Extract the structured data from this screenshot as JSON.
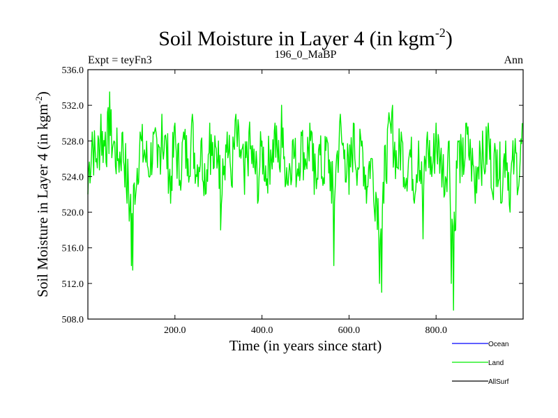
{
  "chart_data": {
    "type": "line",
    "title_main": "Soil Moisture in Layer 4 (in kgm",
    "title_sup": "-2",
    "title_close": ")",
    "subtitle_left": "Expt = teyFn3",
    "subtitle_center": "196_0_MaBP",
    "subtitle_right": "Ann",
    "xlabel": "Time (in years since start)",
    "ylabel_main": "Soil Moisture in Layer 4 (in kgm",
    "ylabel_sup": "-2",
    "ylabel_close": ")",
    "xlim": [
      0,
      1000
    ],
    "ylim": [
      508,
      536
    ],
    "xticks": [
      200,
      400,
      600,
      800
    ],
    "xtick_labels": [
      "200.0",
      "400.0",
      "600.0",
      "800.0"
    ],
    "yticks": [
      508,
      512,
      516,
      520,
      524,
      528,
      532,
      536
    ],
    "ytick_labels": [
      "508.0",
      "512.0",
      "516.0",
      "520.0",
      "524.0",
      "528.0",
      "532.0",
      "536.0"
    ],
    "legend_position": "bottom-right",
    "legend": [
      {
        "name": "Ocean",
        "color": "#0000ff"
      },
      {
        "name": "Land",
        "color": "#00ee00"
      },
      {
        "name": "AllSurf",
        "color": "#000000"
      }
    ],
    "series": [
      {
        "name": "Land",
        "color": "#00ee00",
        "x": [
          0,
          10,
          20,
          30,
          40,
          50,
          60,
          70,
          80,
          90,
          95,
          100,
          103,
          110,
          120,
          130,
          140,
          150,
          160,
          170,
          180,
          190,
          200,
          210,
          220,
          230,
          240,
          250,
          260,
          270,
          280,
          290,
          300,
          305,
          310,
          320,
          330,
          340,
          350,
          360,
          370,
          380,
          390,
          400,
          410,
          420,
          430,
          440,
          445,
          450,
          460,
          470,
          480,
          490,
          500,
          510,
          520,
          530,
          540,
          550,
          560,
          565,
          570,
          580,
          590,
          600,
          610,
          620,
          630,
          640,
          650,
          660,
          670,
          675,
          680,
          690,
          700,
          710,
          720,
          730,
          740,
          750,
          760,
          770,
          780,
          790,
          800,
          810,
          820,
          830,
          835,
          840,
          845,
          850,
          860,
          870,
          880,
          890,
          900,
          910,
          920,
          930,
          940,
          950,
          960,
          970,
          980,
          990,
          998
        ],
        "y": [
          522,
          529,
          526,
          531,
          529,
          533.5,
          528,
          526,
          529,
          521,
          519,
          514,
          513.5,
          522,
          529,
          527,
          524,
          529,
          525,
          531,
          528,
          521,
          530,
          523,
          529,
          526,
          531,
          524,
          528,
          522,
          530,
          525,
          528,
          518,
          526,
          529,
          523,
          531,
          527,
          522,
          529,
          525,
          521,
          528,
          523,
          527,
          530,
          525,
          532,
          526,
          523,
          528,
          524,
          529,
          526,
          530,
          522,
          527,
          523,
          528,
          521,
          514,
          525,
          531,
          527,
          522,
          530,
          525,
          528,
          521,
          526,
          519,
          512,
          511,
          521,
          530,
          532,
          525,
          529,
          523,
          527,
          521,
          528,
          517,
          529,
          524,
          530,
          526,
          522,
          528,
          512,
          509,
          518,
          528,
          524,
          530,
          526,
          521,
          528,
          525,
          530,
          522,
          527,
          521,
          528,
          520,
          526,
          523,
          530
        ]
      }
    ]
  }
}
